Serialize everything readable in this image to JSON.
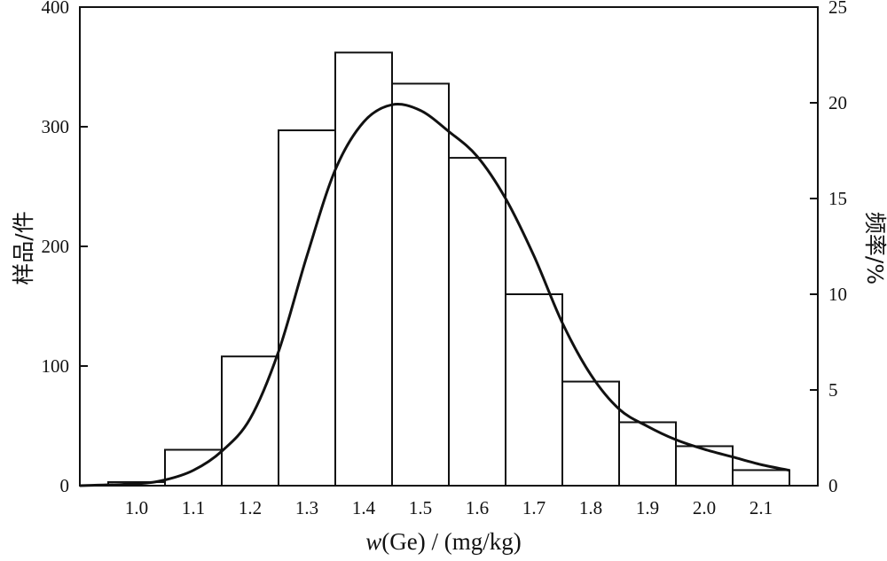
{
  "chart_data": {
    "type": "bar",
    "x_tick_labels": [
      "1.0",
      "1.1",
      "1.2",
      "1.3",
      "1.4",
      "1.5",
      "1.6",
      "1.7",
      "1.8",
      "1.9",
      "2.0",
      "2.1"
    ],
    "bins": [
      {
        "x0": 0.95,
        "x1": 1.05,
        "count": 3
      },
      {
        "x0": 1.05,
        "x1": 1.15,
        "count": 30
      },
      {
        "x0": 1.15,
        "x1": 1.25,
        "count": 108
      },
      {
        "x0": 1.25,
        "x1": 1.35,
        "count": 297
      },
      {
        "x0": 1.35,
        "x1": 1.45,
        "count": 362
      },
      {
        "x0": 1.45,
        "x1": 1.55,
        "count": 336
      },
      {
        "x0": 1.55,
        "x1": 1.65,
        "count": 274
      },
      {
        "x0": 1.65,
        "x1": 1.75,
        "count": 160
      },
      {
        "x0": 1.75,
        "x1": 1.85,
        "count": 87
      },
      {
        "x0": 1.85,
        "x1": 1.95,
        "count": 53
      },
      {
        "x0": 1.95,
        "x1": 2.05,
        "count": 33
      },
      {
        "x0": 2.05,
        "x1": 2.15,
        "count": 13
      }
    ],
    "curve": {
      "x": [
        0.9,
        1.0,
        1.05,
        1.1,
        1.15,
        1.2,
        1.25,
        1.3,
        1.35,
        1.4,
        1.45,
        1.5,
        1.55,
        1.6,
        1.65,
        1.7,
        1.75,
        1.8,
        1.85,
        1.9,
        1.95,
        2.0,
        2.05,
        2.1,
        2.15
      ],
      "y": [
        0.0,
        0.1,
        0.3,
        0.8,
        1.8,
        3.5,
        7.0,
        12.0,
        16.5,
        19.0,
        19.9,
        19.6,
        18.5,
        17.2,
        15.0,
        12.0,
        8.5,
        5.8,
        4.0,
        3.1,
        2.4,
        1.9,
        1.5,
        1.1,
        0.8
      ]
    },
    "xlabel_var": "w",
    "xlabel_rest": "(Ge) / (mg/kg)",
    "ylabel": "样品/件",
    "ylabel_right": "频率/%",
    "xlim": [
      0.9,
      2.2
    ],
    "ylim": [
      0,
      400
    ],
    "ylim_right": [
      0,
      25
    ],
    "yticks": [
      0,
      100,
      200,
      300,
      400
    ],
    "yticks_right": [
      0,
      5,
      10,
      15,
      20,
      25
    ],
    "grid": false,
    "legend": "none"
  }
}
